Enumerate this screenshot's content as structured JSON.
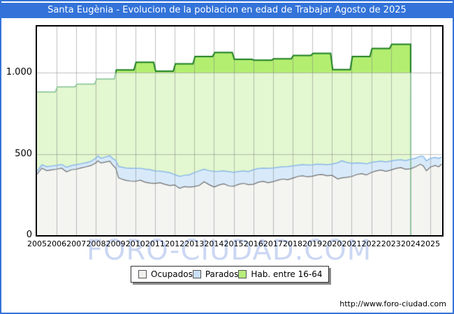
{
  "title": "Santa Eugènia - Evolucion de la poblacion en edad de Trabajar Agosto de 2025",
  "watermark": "FORO-CIUDAD.COM",
  "footer": {
    "url": "http://www.foro-ciudad.com"
  },
  "legend": {
    "items": [
      {
        "label": "Ocupados",
        "color": "#f0f0ec"
      },
      {
        "label": "Parados",
        "color": "#c9e0f6"
      },
      {
        "label": "Hab. entre 16-64",
        "color": "#b7ee7c"
      }
    ]
  },
  "chart_data": {
    "type": "area",
    "title": "Santa Eugènia - Evolucion de la poblacion en edad de Trabajar Agosto de 2025",
    "xlabel": "",
    "ylabel": "",
    "xlim": [
      2005,
      2025.6
    ],
    "ylim": [
      0,
      1285
    ],
    "grid": true,
    "legend_position": "bottom",
    "x_ticks": [
      "2005",
      "2006",
      "2007",
      "2008",
      "2009",
      "2010",
      "2011",
      "2012",
      "2013",
      "2014",
      "2015",
      "2016",
      "2017",
      "2018",
      "2019",
      "2020",
      "2021",
      "2022",
      "2023",
      "2024",
      "2025"
    ],
    "y_ticks": [
      {
        "value": 1000,
        "label": "1.000"
      },
      {
        "value": 500,
        "label": "500"
      },
      {
        "value": 0,
        "label": "0"
      }
    ],
    "series": [
      {
        "name": "Hab. entre 16-64",
        "type": "step_area_yearly",
        "fill": "#e3f7d0",
        "fill_above_1000": "#b3ee71",
        "stroke": "#80c090",
        "stroke_above_1000": "#1c7e20",
        "threshold": 1000,
        "years": [
          2005,
          2006,
          2007,
          2008,
          2009,
          2010,
          2011,
          2012,
          2013,
          2014,
          2015,
          2016,
          2017,
          2018,
          2019,
          2020,
          2021,
          2022,
          2023
        ],
        "values": [
          882,
          913,
          930,
          962,
          1018,
          1065,
          1010,
          1055,
          1100,
          1125,
          1083,
          1078,
          1086,
          1107,
          1120,
          1020,
          1100,
          1150,
          1175
        ],
        "extends_to": 2024.0
      },
      {
        "name": "Ocupados",
        "type": "area",
        "fill": "#f4f4f1",
        "stroke": "#707070",
        "values": [
          375,
          413,
          397,
          402,
          406,
          413,
          390,
          403,
          406,
          414,
          421,
          429,
          446,
          458,
          444,
          451,
          456,
          431,
          413,
          353,
          346,
          338,
          333,
          331,
          339,
          326,
          321,
          319,
          323,
          313,
          306,
          309,
          289,
          299,
          296,
          299,
          306,
          329,
          311,
          296,
          309,
          316,
          303,
          301,
          313,
          319,
          311,
          313,
          326,
          331,
          323,
          329,
          339,
          346,
          341,
          351,
          361,
          366,
          359,
          363,
          371,
          373,
          366,
          369,
          346,
          353,
          356,
          361,
          373,
          379,
          371,
          386,
          396,
          401,
          393,
          401,
          411,
          416,
          406,
          409,
          421,
          437,
          426,
          396,
          419,
          429,
          421,
          437
        ]
      },
      {
        "name": "Parados",
        "type": "area_stacked_on_ocupados",
        "fill": "#d8eaf9",
        "stroke": "#8bb8e8",
        "values": [
          18,
          20,
          24,
          24,
          24,
          22,
          28,
          26,
          28,
          26,
          25,
          26,
          29,
          30,
          29,
          31,
          33,
          40,
          48,
          69,
          73,
          76,
          79,
          80,
          73,
          80,
          82,
          76,
          71,
          77,
          79,
          64,
          73,
          69,
          76,
          86,
          90,
          77,
          86,
          96,
          84,
          79,
          88,
          86,
          79,
          76,
          80,
          90,
          84,
          82,
          88,
          85,
          79,
          75,
          81,
          76,
          70,
          68,
          73,
          70,
          66,
          63,
          68,
          68,
          100,
          105,
          92,
          82,
          72,
          65,
          68,
          62,
          56,
          54,
          58,
          56,
          51,
          48,
          53,
          58,
          53,
          50,
          58,
          62,
          54,
          50,
          52,
          45
        ]
      }
    ],
    "employment_x": [
      2005,
      2005.25,
      2005.5,
      2005.75,
      2006,
      2006.25,
      2006.5,
      2006.75,
      2007,
      2007.25,
      2007.5,
      2007.75,
      2008,
      2008.1,
      2008.25,
      2008.5,
      2008.7,
      2008.85,
      2009,
      2009.15,
      2009.3,
      2009.5,
      2009.75,
      2010,
      2010.25,
      2010.5,
      2010.75,
      2011,
      2011.25,
      2011.5,
      2011.75,
      2012,
      2012.25,
      2012.5,
      2012.75,
      2013,
      2013.25,
      2013.5,
      2013.75,
      2014,
      2014.25,
      2014.5,
      2014.75,
      2015,
      2015.25,
      2015.5,
      2015.75,
      2016,
      2016.25,
      2016.5,
      2016.75,
      2017,
      2017.25,
      2017.5,
      2017.75,
      2018,
      2018.25,
      2018.5,
      2018.75,
      2019,
      2019.25,
      2019.5,
      2019.75,
      2020,
      2020.3,
      2020.5,
      2020.75,
      2021,
      2021.25,
      2021.5,
      2021.75,
      2022,
      2022.25,
      2022.5,
      2022.75,
      2023,
      2023.25,
      2023.5,
      2023.75,
      2024,
      2024.25,
      2024.5,
      2024.65,
      2024.8,
      2025,
      2025.25,
      2025.42,
      2025.58
    ]
  },
  "colors": {
    "frame_blue": "#3373d9",
    "gridline": "#808080",
    "plot_border": "#000000",
    "watermark": "#cbd7f3"
  }
}
